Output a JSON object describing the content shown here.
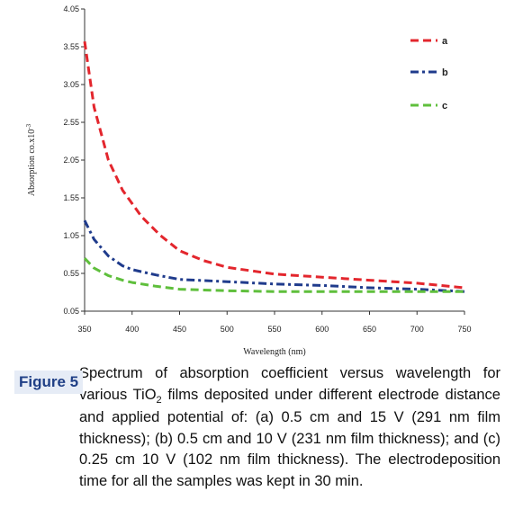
{
  "chart_data": {
    "type": "line",
    "title": "",
    "xlabel": "Wavelength (nm)",
    "ylabel": "Absorption co.x10",
    "ylabel_superscript": "-3",
    "xlim": [
      350,
      750
    ],
    "ylim": [
      0.05,
      4.05
    ],
    "xticks": [
      "350",
      "400",
      "450",
      "500",
      "550",
      "600",
      "650",
      "700",
      "750"
    ],
    "yticks": [
      "4.05",
      "3.55",
      "3.05",
      "2.55",
      "2.05",
      "1.55",
      "1.05",
      "0.55",
      "0.05"
    ],
    "grid": false,
    "legend_position": "top-right",
    "series": [
      {
        "name": "a",
        "color": "#e3262d",
        "dash": "dashed",
        "x": [
          350,
          360,
          375,
          390,
          410,
          430,
          450,
          475,
          500,
          550,
          600,
          650,
          700,
          750
        ],
        "y": [
          3.62,
          2.75,
          2.05,
          1.65,
          1.3,
          1.05,
          0.85,
          0.72,
          0.63,
          0.54,
          0.5,
          0.46,
          0.42,
          0.36
        ]
      },
      {
        "name": "b",
        "color": "#1f3b8c",
        "dash": "dash-dot",
        "x": [
          350,
          360,
          375,
          390,
          400,
          425,
          450,
          500,
          550,
          600,
          650,
          700,
          750
        ],
        "y": [
          1.25,
          1.0,
          0.78,
          0.65,
          0.6,
          0.53,
          0.47,
          0.44,
          0.41,
          0.39,
          0.36,
          0.34,
          0.31
        ]
      },
      {
        "name": "c",
        "color": "#5fbf3c",
        "dash": "dashed",
        "x": [
          350,
          360,
          375,
          390,
          400,
          425,
          450,
          500,
          550,
          600,
          650,
          700,
          750
        ],
        "y": [
          0.75,
          0.62,
          0.52,
          0.46,
          0.43,
          0.38,
          0.34,
          0.32,
          0.31,
          0.31,
          0.31,
          0.31,
          0.31
        ]
      }
    ]
  },
  "caption": {
    "label": "Figure 5",
    "text_before_sub": "Spectrum of absorption coefficient versus wavelength for various TiO",
    "subscript": "2",
    "text_after_sub": " films deposited under different electrode distance and applied potential of: (a) 0.5 cm and 15 V (291 nm film thickness); (b) 0.5 cm and 10 V (231 nm film thickness); and (c) 0.25 cm 10 V (102 nm film thickness). The electrodeposition time for all the samples was kept in 30 min."
  }
}
